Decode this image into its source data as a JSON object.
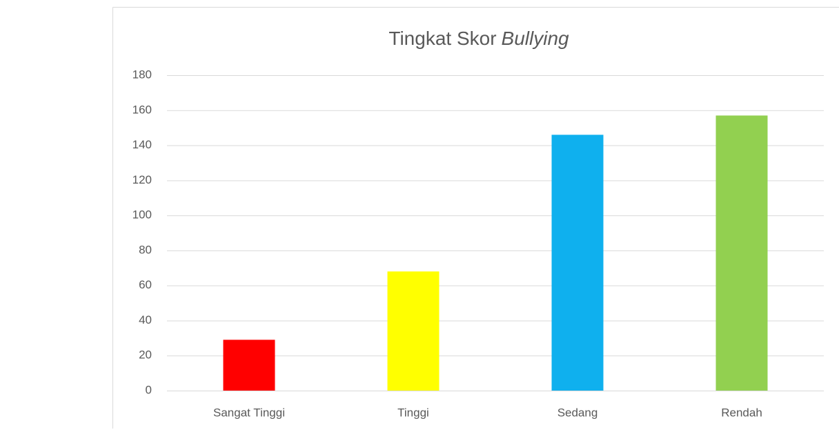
{
  "chart_data": {
    "type": "bar",
    "title": [
      "Tingkat Skor",
      "Bullying"
    ],
    "title_italic": [
      false,
      true
    ],
    "categories": [
      "Sangat Tinggi",
      "Tinggi",
      "Sedang",
      "Rendah"
    ],
    "values": [
      29,
      68,
      146,
      157
    ],
    "colors": [
      "#ff0000",
      "#ffff00",
      "#0fb0ee",
      "#92d050"
    ],
    "ylim": [
      0,
      180
    ],
    "yticks": [
      0,
      20,
      40,
      60,
      80,
      100,
      120,
      140,
      160,
      180
    ],
    "grid": true
  }
}
